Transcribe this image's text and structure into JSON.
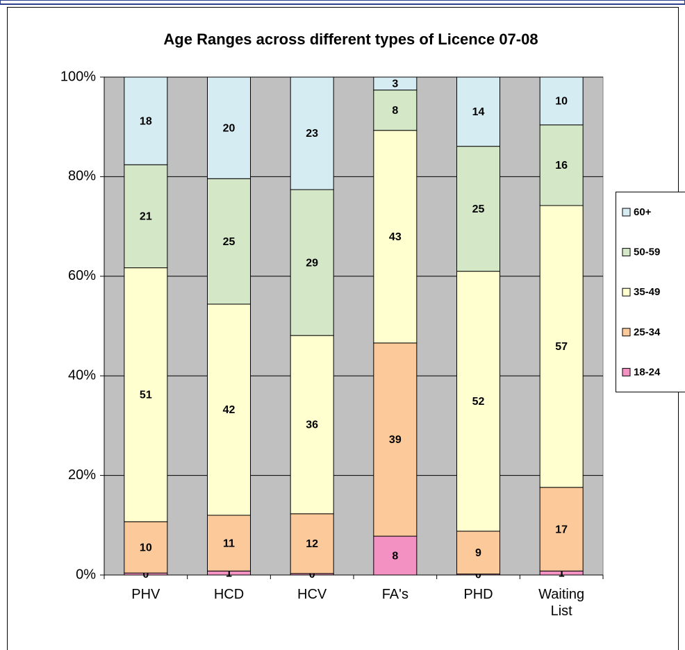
{
  "chart_data": {
    "type": "bar",
    "stacked": true,
    "title": "Age Ranges across different types of Licence 07-08",
    "categories": [
      "PHV",
      "HCD",
      "HCV",
      "FA's",
      "PHD",
      "Waiting List"
    ],
    "series": [
      {
        "name": "18-24",
        "color": "#f291c2",
        "values": [
          0.4,
          0.8,
          0.3,
          7.8,
          0.2,
          0.8
        ],
        "value_labels": [
          "0",
          "1",
          "0",
          "8",
          "0",
          "1"
        ]
      },
      {
        "name": "25-34",
        "color": "#fbc99a",
        "values": [
          10.3,
          11.2,
          12.0,
          38.8,
          8.6,
          16.8
        ],
        "value_labels": [
          "10",
          "11",
          "12",
          "39",
          "9",
          "17"
        ]
      },
      {
        "name": "35-49",
        "color": "#ffffd0",
        "values": [
          51.0,
          42.4,
          35.8,
          42.7,
          52.2,
          56.6
        ],
        "value_labels": [
          "51",
          "42",
          "36",
          "43",
          "52",
          "57"
        ]
      },
      {
        "name": "50-59",
        "color": "#d4e8c8",
        "values": [
          20.7,
          25.2,
          29.3,
          8.1,
          25.1,
          16.2
        ],
        "value_labels": [
          "21",
          "25",
          "29",
          "8",
          "25",
          "16"
        ]
      },
      {
        "name": "60+",
        "color": "#d6ecf3",
        "values": [
          17.6,
          20.4,
          22.6,
          2.6,
          13.9,
          9.6
        ],
        "value_labels": [
          "18",
          "20",
          "23",
          "3",
          "14",
          "10"
        ]
      }
    ],
    "ylim": [
      0,
      100
    ],
    "yticks": [
      {
        "value": 0,
        "label": "0%"
      },
      {
        "value": 20,
        "label": "20%"
      },
      {
        "value": 40,
        "label": "40%"
      },
      {
        "value": 60,
        "label": "60%"
      },
      {
        "value": 80,
        "label": "80%"
      },
      {
        "value": 100,
        "label": "100%"
      }
    ],
    "grid": true,
    "legend": "right"
  }
}
